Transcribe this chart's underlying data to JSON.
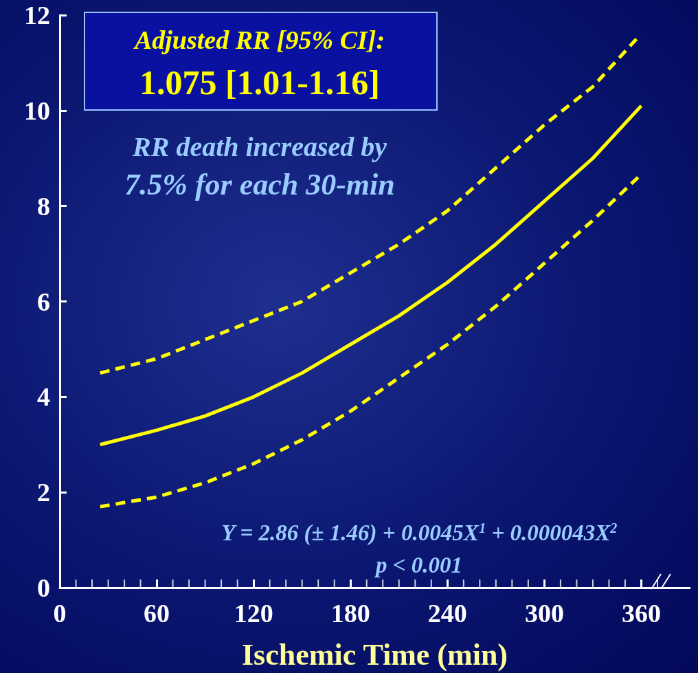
{
  "chart_data": {
    "type": "line",
    "xlabel": "Ischemic Time (min)",
    "annotations": [
      "Adjusted RR [95% CI]:",
      "1.075 [1.01-1.16]",
      "RR death increased by",
      "7.5% for each 30-min",
      "Y = 2.86 (± 1.46) + 0.0045X$^{1}$ + 0.000043X$^{2}$",
      "p < 0.001"
    ],
    "xlim": [
      0,
      390
    ],
    "xticks": [
      0,
      {
        "value": 10,
        "label": null
      },
      {
        "value": 20,
        "label": null
      },
      {
        "value": 30,
        "label": null
      },
      {
        "value": 40,
        "label": null
      },
      {
        "value": 50,
        "label": null
      },
      60,
      {
        "value": 70,
        "label": null
      },
      {
        "value": 80,
        "label": null
      },
      {
        "value": 90,
        "label": null
      },
      {
        "value": 100,
        "label": null
      },
      {
        "value": 110,
        "label": null
      },
      120,
      {
        "value": 130,
        "label": null
      },
      {
        "value": 140,
        "label": null
      },
      {
        "value": 150,
        "label": null
      },
      {
        "value": 160,
        "label": null
      },
      {
        "value": 170,
        "label": null
      },
      180,
      {
        "value": 190,
        "label": null
      },
      {
        "value": 200,
        "label": null
      },
      {
        "value": 210,
        "label": null
      },
      {
        "value": 220,
        "label": null
      },
      {
        "value": 230,
        "label": null
      },
      240,
      {
        "value": 250,
        "label": null
      },
      {
        "value": 260,
        "label": null
      },
      {
        "value": 270,
        "label": null
      },
      {
        "value": 280,
        "label": null
      },
      {
        "value": 290,
        "label": null
      },
      300,
      {
        "value": 310,
        "label": null
      },
      {
        "value": 320,
        "label": null
      },
      {
        "value": 330,
        "label": null
      },
      {
        "value": 340,
        "label": null
      },
      {
        "value": 350,
        "label": null
      },
      360,
      {
        "value": 370,
        "label": null
      }
    ],
    "ylim": [
      0,
      12
    ],
    "yticks": [
      0,
      2,
      4,
      6,
      8,
      10,
      12
    ],
    "grid": false,
    "marker": "none",
    "series": [
      {
        "color": "#ffff00",
        "line_style": "dashed",
        "x": [
          25,
          60,
          90,
          120,
          150,
          180,
          210,
          240,
          270,
          300,
          330,
          357
        ],
        "values": [
          4.5,
          4.8,
          5.2,
          5.6,
          6.0,
          6.6,
          7.2,
          7.9,
          8.8,
          9.7,
          10.5,
          11.5
        ]
      },
      {
        "color": "#ffff00",
        "line_style": "solid",
        "x": [
          25,
          60,
          90,
          120,
          150,
          180,
          210,
          240,
          270,
          300,
          330,
          360
        ],
        "values": [
          3.0,
          3.3,
          3.6,
          4.0,
          4.5,
          5.1,
          5.7,
          6.4,
          7.2,
          8.1,
          9.0,
          10.1
        ]
      },
      {
        "color": "#ffff00",
        "line_style": "dashed",
        "x": [
          25,
          60,
          90,
          120,
          150,
          180,
          210,
          240,
          270,
          300,
          330,
          358
        ],
        "values": [
          1.7,
          1.9,
          2.2,
          2.6,
          3.1,
          3.7,
          4.4,
          5.1,
          5.9,
          6.8,
          7.7,
          8.6
        ]
      }
    ]
  }
}
